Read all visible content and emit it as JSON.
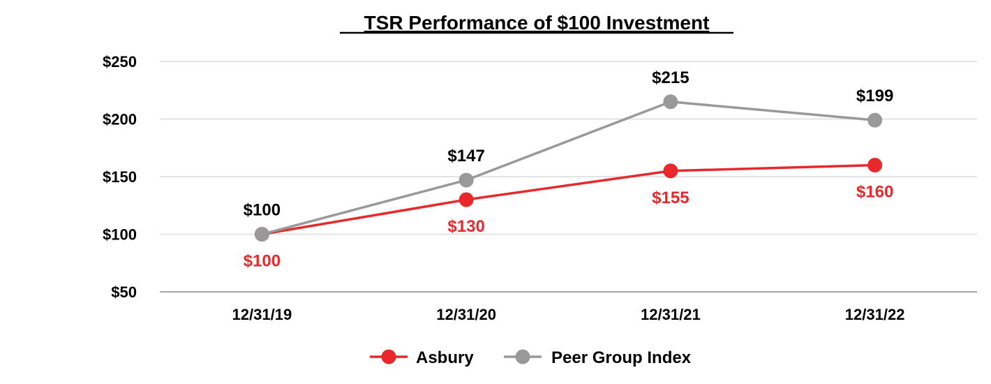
{
  "chart_data": {
    "type": "line",
    "title": "TSR Performance of $100 Investment",
    "categories": [
      "12/31/19",
      "12/31/20",
      "12/31/21",
      "12/31/22"
    ],
    "ylim": [
      50,
      250
    ],
    "yticks": [
      50,
      100,
      150,
      200,
      250
    ],
    "ytick_labels": [
      "$50",
      "$100",
      "$150",
      "$200",
      "$250"
    ],
    "grid": true,
    "legend_position": "bottom-center",
    "series": [
      {
        "name": "Asbury",
        "color": "#e8282b",
        "values": [
          100,
          130,
          155,
          160
        ],
        "labels": [
          "$100",
          "$130",
          "$155",
          "$160"
        ],
        "label_position": "below"
      },
      {
        "name": "Peer Group Index",
        "color": "#999999",
        "values": [
          100,
          147,
          215,
          199
        ],
        "labels": [
          "$100",
          "$147",
          "$215",
          "$199"
        ],
        "label_position": "above"
      }
    ]
  }
}
